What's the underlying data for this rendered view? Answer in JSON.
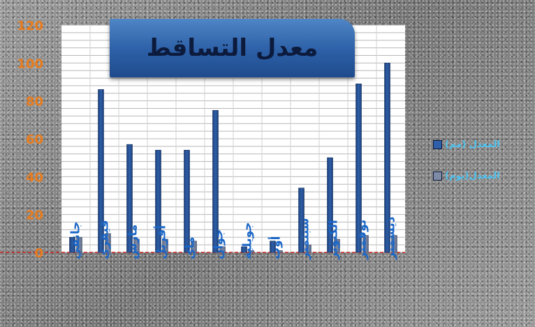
{
  "chart_data": {
    "type": "bar",
    "title": "معدل التساقط",
    "categories": [
      "جانفي",
      "فيفري",
      "مارس",
      "أفريل",
      "ماي",
      "جوان",
      "جويلية",
      "أوت",
      "سبتمبر",
      "الكتوبر",
      "نوفمبر",
      "ديسمبر"
    ],
    "series": [
      {
        "name": "المعدل (مم)",
        "values": [
          8,
          86,
          57,
          54,
          54,
          75,
          3,
          6,
          34,
          50,
          89,
          100
        ],
        "color": "#2e5fa8"
      },
      {
        "name": "المعدل(يوم)",
        "values": [
          8,
          10,
          7,
          7,
          6,
          3,
          1,
          1,
          4,
          7,
          9,
          9
        ],
        "color": "#7f8ba6"
      }
    ],
    "ylim": [
      0,
      120
    ],
    "yticks": [
      "0",
      "20",
      "40",
      "60",
      "80",
      "100",
      "120"
    ],
    "grid": true,
    "legend": "right",
    "colors": {
      "tick_labels": "#e87c1e",
      "category_labels": "#1b67c7",
      "legend_text": "#4fc3f0",
      "title_box": "#2c5fa6",
      "baseline": "#cc2222"
    }
  }
}
